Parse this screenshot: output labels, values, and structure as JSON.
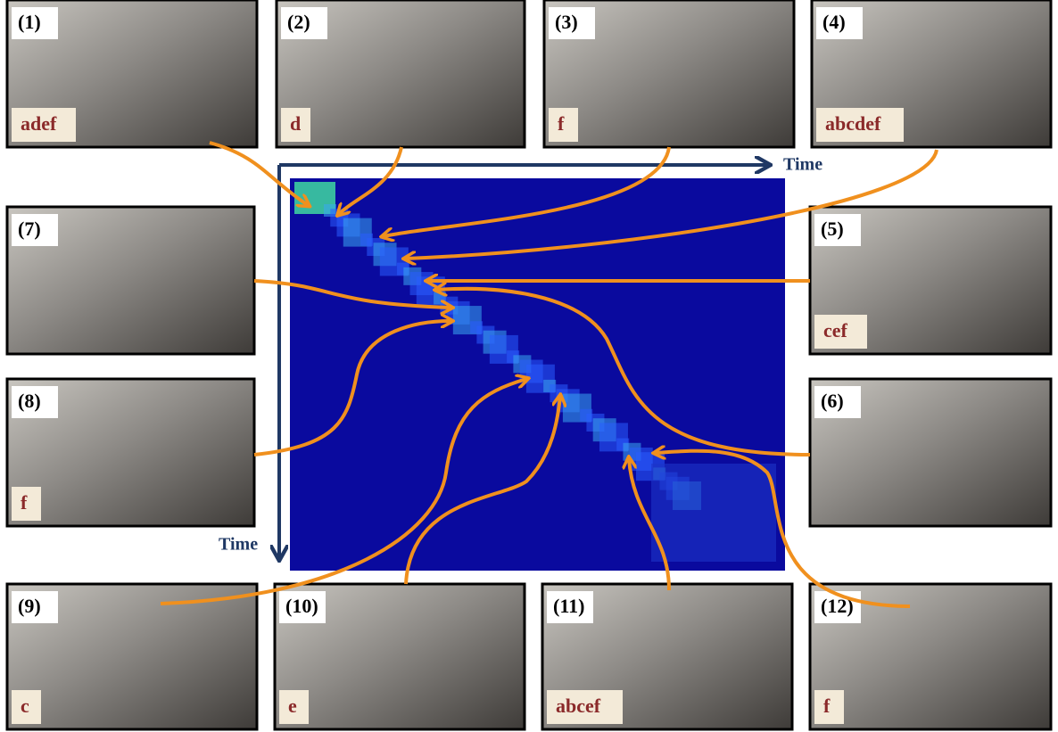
{
  "axis_labels": {
    "horizontal": "Time",
    "vertical": "Time"
  },
  "panels": [
    {
      "number": "(1)",
      "tag": "adef"
    },
    {
      "number": "(2)",
      "tag": "d"
    },
    {
      "number": "(3)",
      "tag": "f"
    },
    {
      "number": "(4)",
      "tag": "abcdef"
    },
    {
      "number": "(5)",
      "tag": "cef"
    },
    {
      "number": "(6)"
    },
    {
      "number": "(7)"
    },
    {
      "number": "(8)",
      "tag": "f"
    },
    {
      "number": "(9)",
      "tag": "c"
    },
    {
      "number": "(10)",
      "tag": "e"
    },
    {
      "number": "(11)",
      "tag": "abcef"
    },
    {
      "number": "(12)",
      "tag": "f"
    }
  ]
}
